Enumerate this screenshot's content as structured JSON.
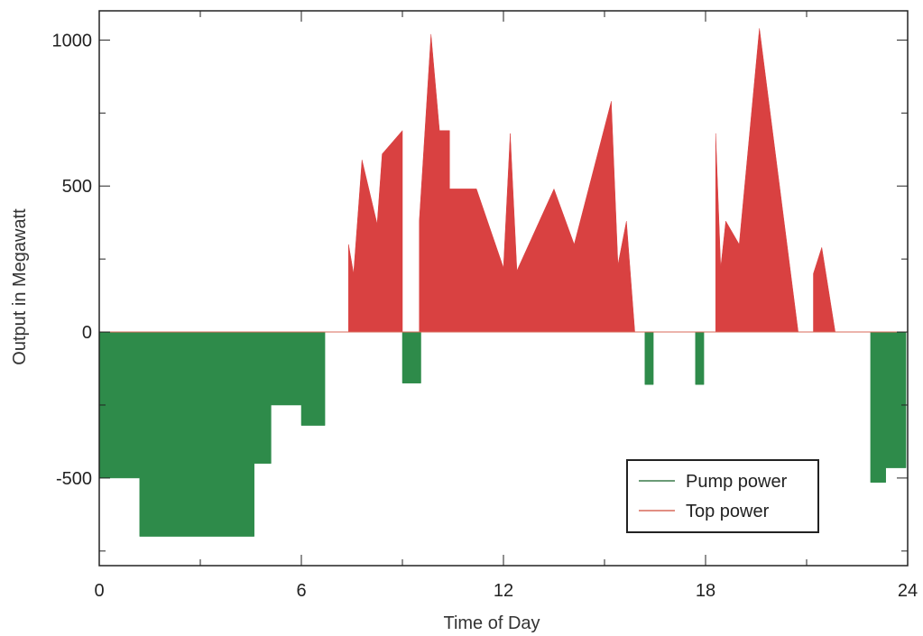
{
  "chart_data": {
    "type": "area",
    "xlabel": "Time of Day",
    "ylabel": "Output in Megawatt",
    "xlim": [
      0,
      24
    ],
    "ylim": [
      -800,
      1100
    ],
    "xticks": [
      0,
      6,
      12,
      18,
      24
    ],
    "yticks": [
      -500,
      0,
      500,
      1000
    ],
    "grid": false,
    "legend_position": "bottom-right",
    "series": [
      {
        "name": "Pump power",
        "color": "#2e8b4a",
        "line_color": "#3a7a4a",
        "points": [
          [
            0,
            0
          ],
          [
            0,
            -500
          ],
          [
            1.2,
            -500
          ],
          [
            1.2,
            -700
          ],
          [
            4.6,
            -700
          ],
          [
            4.6,
            -450
          ],
          [
            5.1,
            -450
          ],
          [
            5.1,
            -250
          ],
          [
            6.0,
            -250
          ],
          [
            6.0,
            -320
          ],
          [
            6.7,
            -320
          ],
          [
            6.7,
            0
          ],
          [
            9.0,
            0
          ],
          [
            9.0,
            -175
          ],
          [
            9.55,
            -175
          ],
          [
            9.55,
            0
          ],
          [
            16.2,
            0
          ],
          [
            16.2,
            -180
          ],
          [
            16.45,
            -180
          ],
          [
            16.45,
            0
          ],
          [
            17.7,
            0
          ],
          [
            17.7,
            -180
          ],
          [
            17.95,
            -180
          ],
          [
            17.95,
            0
          ],
          [
            22.9,
            0
          ],
          [
            22.9,
            -515
          ],
          [
            23.35,
            -515
          ],
          [
            23.35,
            -465
          ],
          [
            23.95,
            -465
          ],
          [
            23.95,
            0
          ]
        ]
      },
      {
        "name": "Top power",
        "color": "#d94141",
        "line_color": "#d96a5a",
        "points": [
          [
            7.4,
            0
          ],
          [
            7.4,
            300
          ],
          [
            7.55,
            200
          ],
          [
            7.8,
            590
          ],
          [
            8.25,
            370
          ],
          [
            8.4,
            610
          ],
          [
            9.0,
            690
          ],
          [
            9.0,
            0
          ],
          [
            9.5,
            0
          ],
          [
            9.5,
            380
          ],
          [
            9.85,
            1020
          ],
          [
            10.1,
            690
          ],
          [
            10.4,
            690
          ],
          [
            10.4,
            490
          ],
          [
            11.2,
            490
          ],
          [
            12.0,
            220
          ],
          [
            12.2,
            680
          ],
          [
            12.4,
            210
          ],
          [
            13.5,
            490
          ],
          [
            14.1,
            300
          ],
          [
            15.2,
            790
          ],
          [
            15.4,
            230
          ],
          [
            15.65,
            380
          ],
          [
            15.9,
            0
          ],
          [
            18.3,
            0
          ],
          [
            18.3,
            680
          ],
          [
            18.45,
            220
          ],
          [
            18.6,
            380
          ],
          [
            19.0,
            300
          ],
          [
            19.6,
            1040
          ],
          [
            20.75,
            0
          ],
          [
            21.2,
            0
          ],
          [
            21.2,
            200
          ],
          [
            21.45,
            290
          ],
          [
            21.85,
            0
          ]
        ]
      }
    ]
  }
}
